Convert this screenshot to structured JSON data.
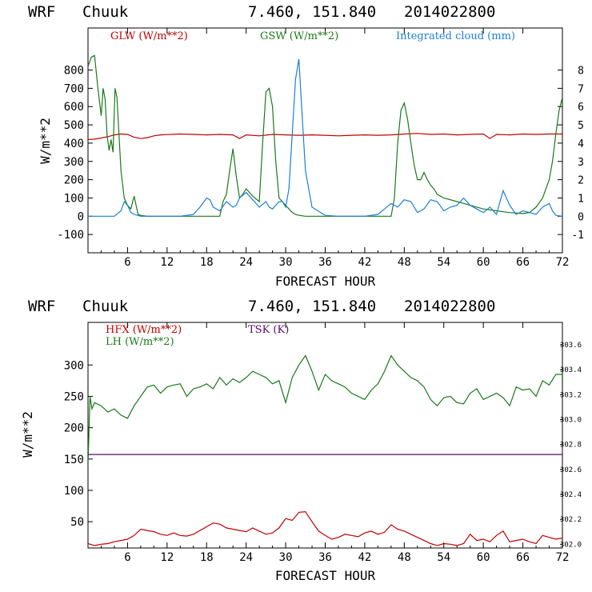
{
  "colors": {
    "red": "#c00000",
    "green": "#1a7a1a",
    "blue": "#1c7fd6",
    "purple": "#5a0a6a",
    "black": "#000000"
  },
  "chart_data": [
    {
      "type": "line",
      "header": {
        "model": "WRF",
        "location": "Chuuk",
        "coords": "7.460, 151.840",
        "date": "2014022800"
      },
      "xlabel": "FORECAST HOUR",
      "ylabel": "W/m**2",
      "xlim": [
        0,
        72
      ],
      "ylim": [
        -200,
        1030
      ],
      "y2lim": [
        -2,
        10.3
      ],
      "x_ticks": [
        6,
        12,
        18,
        24,
        30,
        36,
        42,
        48,
        54,
        60,
        66,
        72
      ],
      "x_tick_labels": [
        "6",
        "12",
        "18",
        "24",
        "30",
        "36",
        "42",
        "48",
        "54",
        "60",
        "66",
        "72"
      ],
      "y_ticks": [
        -100,
        0,
        100,
        200,
        300,
        400,
        500,
        600,
        700,
        800
      ],
      "y_tick_labels": [
        "-100",
        "0",
        "100",
        "200",
        "300",
        "400",
        "500",
        "600",
        "700",
        "800"
      ],
      "y2_ticks": [
        -1,
        0,
        1,
        2,
        3,
        4,
        5,
        6,
        7,
        8
      ],
      "y2_tick_labels": [
        "-1",
        "0",
        "1",
        "2",
        "3",
        "4",
        "5",
        "6",
        "7",
        "8"
      ],
      "series": [
        {
          "name": "GLW (W/m**2)",
          "color": "#c00000",
          "axis": "left",
          "x": [
            0,
            1,
            2,
            3,
            4,
            5,
            6,
            7,
            8,
            9,
            10,
            11,
            12,
            14,
            16,
            18,
            20,
            22,
            23,
            24,
            26,
            28,
            30,
            32,
            34,
            36,
            38,
            40,
            42,
            44,
            46,
            48,
            50,
            52,
            54,
            56,
            58,
            60,
            61,
            62,
            64,
            66,
            68,
            70,
            72
          ],
          "y": [
            420,
            422,
            428,
            435,
            445,
            450,
            448,
            432,
            425,
            430,
            440,
            445,
            447,
            450,
            448,
            445,
            448,
            445,
            425,
            445,
            440,
            448,
            445,
            443,
            445,
            443,
            440,
            443,
            445,
            443,
            445,
            450,
            453,
            448,
            450,
            445,
            448,
            450,
            425,
            448,
            445,
            450,
            448,
            450,
            450
          ]
        },
        {
          "name": "GSW (W/m**2)",
          "color": "#1a7a1a",
          "axis": "left",
          "x": [
            0,
            0.5,
            1,
            1.5,
            2,
            2.3,
            2.6,
            2.9,
            3.2,
            3.5,
            3.8,
            4.1,
            4.4,
            4.7,
            5,
            5.5,
            6,
            6.5,
            7,
            7.3,
            7.6,
            8,
            9,
            10,
            12,
            14,
            16,
            18,
            20,
            20.5,
            21,
            21.5,
            22,
            22.5,
            23,
            23.5,
            24,
            24.5,
            25,
            26,
            26.5,
            27,
            27.5,
            28,
            28.5,
            29,
            29.5,
            30,
            30.5,
            31,
            31.5,
            32,
            33,
            34,
            36,
            38,
            40,
            42,
            44,
            46,
            46.5,
            47,
            47.5,
            48,
            48.5,
            49,
            49.5,
            50,
            50.5,
            51,
            51.5,
            52,
            52.5,
            53,
            54,
            56,
            58,
            60,
            62,
            64,
            66,
            67,
            68,
            69,
            70,
            70.5,
            71,
            71.5,
            72
          ],
          "y": [
            820,
            870,
            880,
            700,
            550,
            700,
            640,
            440,
            360,
            420,
            350,
            700,
            650,
            450,
            250,
            100,
            60,
            40,
            110,
            60,
            10,
            5,
            0,
            0,
            0,
            0,
            0,
            0,
            0,
            80,
            120,
            250,
            370,
            220,
            100,
            120,
            150,
            130,
            110,
            80,
            400,
            680,
            700,
            600,
            300,
            100,
            80,
            60,
            40,
            20,
            10,
            5,
            0,
            0,
            0,
            0,
            0,
            0,
            0,
            0,
            100,
            400,
            580,
            620,
            530,
            400,
            280,
            200,
            200,
            240,
            200,
            170,
            150,
            120,
            100,
            80,
            60,
            40,
            30,
            20,
            15,
            20,
            50,
            100,
            200,
            300,
            450,
            580,
            650
          ]
        },
        {
          "name": "Integrated cloud (mm)",
          "color": "#1c7fd6",
          "axis": "right",
          "x": [
            0,
            2,
            4,
            5,
            5.5,
            6,
            6.5,
            7,
            8,
            10,
            12,
            14,
            16,
            17,
            18,
            18.5,
            19,
            20,
            21,
            22,
            22.5,
            23,
            24,
            25,
            26,
            27,
            27.5,
            28,
            28.5,
            29,
            29.5,
            30,
            30.5,
            31,
            31.5,
            32,
            32.5,
            33,
            34,
            36,
            38,
            40,
            42,
            44,
            45,
            46,
            47,
            48,
            49,
            50,
            51,
            52,
            53,
            54,
            55,
            56,
            57,
            58,
            59,
            60,
            61,
            62,
            63,
            64,
            65,
            66,
            67,
            68,
            69,
            70,
            70.5,
            71,
            72
          ],
          "y": [
            0,
            0,
            0,
            0.3,
            0.8,
            0.6,
            0.2,
            0.1,
            0,
            0,
            0,
            0,
            0.1,
            0.5,
            1.0,
            0.9,
            0.5,
            0.3,
            0.8,
            0.5,
            0.6,
            1.0,
            1.3,
            0.9,
            0.5,
            0.8,
            0.5,
            0.4,
            0.6,
            0.8,
            0.8,
            0.5,
            1.5,
            4.5,
            7.5,
            8.6,
            5.5,
            2.5,
            0.5,
            0.05,
            0,
            0,
            0,
            0.1,
            0.4,
            0.7,
            0.5,
            0.9,
            0.8,
            0.2,
            0.4,
            0.9,
            0.8,
            0.3,
            0.5,
            0.6,
            1.0,
            0.6,
            0.4,
            0.2,
            0.5,
            0.1,
            1.4,
            0.6,
            0.1,
            0.3,
            0.2,
            0.1,
            0.5,
            0.7,
            0.3,
            0.05,
            0
          ]
        }
      ]
    },
    {
      "type": "line",
      "header": {
        "model": "WRF",
        "location": "Chuuk",
        "coords": "7.460, 151.840",
        "date": "2014022800"
      },
      "xlabel": "FORECAST HOUR",
      "ylabel": "W/m**2",
      "xlim": [
        0,
        72
      ],
      "ylim": [
        8,
        368
      ],
      "y2lim": [
        301.97,
        303.78
      ],
      "x_ticks": [
        6,
        12,
        18,
        24,
        30,
        36,
        42,
        48,
        54,
        60,
        66,
        72
      ],
      "x_tick_labels": [
        "6",
        "12",
        "18",
        "24",
        "30",
        "36",
        "42",
        "48",
        "54",
        "60",
        "66",
        "72"
      ],
      "y_ticks": [
        50,
        100,
        150,
        200,
        250,
        300
      ],
      "y_tick_labels": [
        "50",
        "100",
        "150",
        "200",
        "250",
        "300"
      ],
      "y2_ticks": [
        302.0,
        302.2,
        302.4,
        302.6,
        302.8,
        303.0,
        303.2,
        303.4,
        303.6
      ],
      "y2_tick_labels": [
        "302.0",
        "302.2",
        "302.4",
        "302.6",
        "302.8",
        "303.0",
        "303.2",
        "303.4",
        "303.6"
      ],
      "series": [
        {
          "name": "HFX (W/m**2)",
          "color": "#c00000",
          "axis": "left",
          "x": [
            0,
            1,
            2,
            3,
            4,
            5,
            6,
            7,
            8,
            9,
            10,
            11,
            12,
            13,
            14,
            15,
            16,
            17,
            18,
            19,
            20,
            21,
            22,
            23,
            24,
            25,
            26,
            27,
            28,
            29,
            30,
            31,
            32,
            33,
            34,
            35,
            36,
            37,
            38,
            39,
            40,
            41,
            42,
            43,
            44,
            45,
            46,
            47,
            48,
            49,
            50,
            51,
            52,
            53,
            54,
            55,
            56,
            57,
            58,
            59,
            60,
            61,
            62,
            63,
            64,
            65,
            66,
            67,
            68,
            69,
            70,
            71,
            72
          ],
          "y": [
            15,
            12,
            14,
            15,
            18,
            20,
            22,
            28,
            38,
            36,
            34,
            30,
            28,
            32,
            28,
            27,
            30,
            36,
            42,
            48,
            46,
            40,
            38,
            36,
            34,
            40,
            35,
            30,
            32,
            40,
            55,
            52,
            65,
            66,
            50,
            35,
            28,
            22,
            25,
            30,
            28,
            26,
            32,
            35,
            30,
            33,
            45,
            38,
            35,
            30,
            25,
            20,
            15,
            12,
            15,
            14,
            12,
            15,
            30,
            20,
            22,
            18,
            28,
            35,
            18,
            20,
            22,
            18,
            15,
            28,
            25,
            22,
            24
          ]
        },
        {
          "name": "LH  (W/m**2)",
          "color": "#1a7a1a",
          "axis": "left",
          "x": [
            0,
            0.3,
            0.6,
            1,
            2,
            3,
            4,
            5,
            6,
            7,
            8,
            9,
            10,
            11,
            12,
            13,
            14,
            15,
            16,
            17,
            18,
            19,
            20,
            21,
            22,
            23,
            24,
            25,
            26,
            27,
            28,
            29,
            30,
            31,
            32,
            33,
            34,
            35,
            36,
            37,
            38,
            39,
            40,
            41,
            42,
            43,
            44,
            45,
            46,
            47,
            48,
            49,
            50,
            51,
            52,
            53,
            54,
            55,
            56,
            57,
            58,
            59,
            60,
            61,
            62,
            63,
            64,
            65,
            66,
            67,
            68,
            69,
            70,
            71,
            72
          ],
          "y": [
            140,
            250,
            230,
            240,
            235,
            225,
            230,
            220,
            215,
            235,
            250,
            265,
            268,
            255,
            265,
            268,
            270,
            250,
            262,
            265,
            270,
            262,
            280,
            268,
            278,
            272,
            280,
            290,
            285,
            280,
            270,
            275,
            240,
            280,
            300,
            315,
            290,
            260,
            285,
            275,
            270,
            265,
            255,
            250,
            245,
            260,
            270,
            290,
            315,
            300,
            290,
            280,
            275,
            265,
            245,
            235,
            248,
            250,
            240,
            238,
            255,
            262,
            245,
            250,
            255,
            248,
            235,
            265,
            260,
            262,
            250,
            275,
            268,
            285,
            285
          ]
        },
        {
          "name": "TSK (K)",
          "color": "#5a0a6a",
          "axis": "right",
          "x": [
            0,
            72
          ],
          "y": [
            302.72,
            302.72
          ]
        }
      ]
    }
  ]
}
